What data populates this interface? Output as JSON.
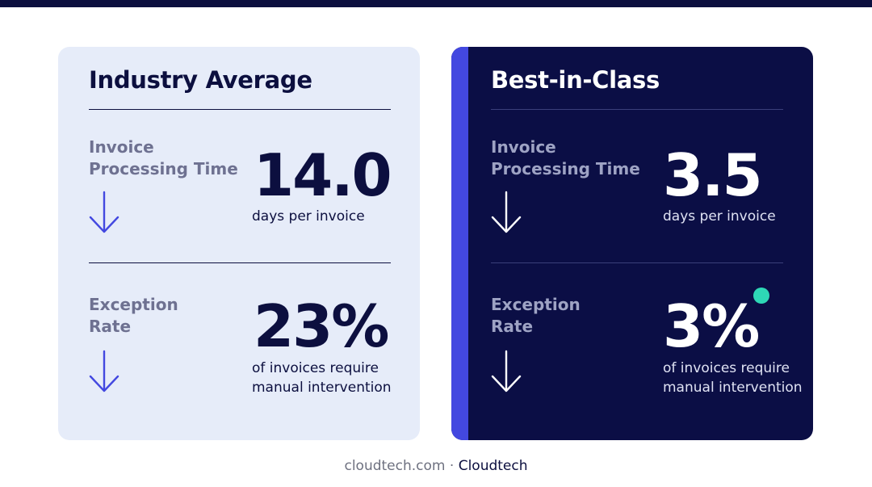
{
  "colors": {
    "navy": "#0c0f3f",
    "dark_card": "#0b0e45",
    "light_card": "#e6ecf9",
    "accent_blue": "#4348e0",
    "teal_dot": "#2ed8b6"
  },
  "industry": {
    "title": "Industry Average",
    "metrics": [
      {
        "label_line1": "Invoice",
        "label_line2": "Processing Time",
        "value": "14.0",
        "unit_line1": "days per invoice",
        "unit_line2": "",
        "icon": "arrow-down-icon"
      },
      {
        "label_line1": "Exception",
        "label_line2": "Rate",
        "value": "23%",
        "unit_line1": "of invoices require",
        "unit_line2": "manual intervention",
        "icon": "arrow-down-icon"
      }
    ]
  },
  "best": {
    "title": "Best-in-Class",
    "metrics": [
      {
        "label_line1": "Invoice",
        "label_line2": "Processing Time",
        "value": "3.5",
        "unit_line1": "days per invoice",
        "unit_line2": "",
        "icon": "arrow-down-icon"
      },
      {
        "label_line1": "Exception",
        "label_line2": "Rate",
        "value": "3%",
        "unit_line1": "of invoices require",
        "unit_line2": "manual intervention",
        "icon": "arrow-down-icon"
      }
    ]
  },
  "footer": {
    "domain": "cloudtech.com",
    "separator": " · ",
    "brand": "Cloudtech"
  }
}
